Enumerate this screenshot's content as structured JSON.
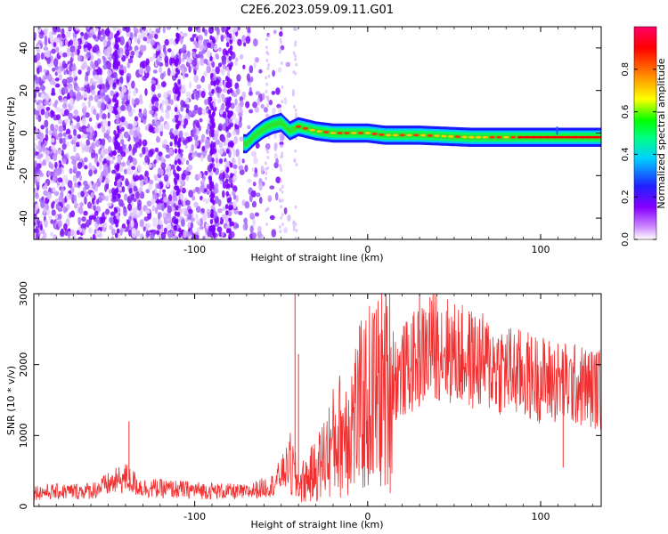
{
  "title": "C2E6.2023.059.09.11.G01",
  "chart_data": [
    {
      "type": "heatmap",
      "xlabel": "Height of straight line (km)",
      "ylabel": "Frequency (Hz)",
      "xlim": [
        -193,
        135
      ],
      "ylim": [
        -50,
        50
      ],
      "xticks": [
        -100,
        0,
        100
      ],
      "yticks": [
        -40,
        -20,
        0,
        20,
        40
      ],
      "ridge": [
        {
          "x": -70,
          "y": -5
        },
        {
          "x": -65,
          "y": -1
        },
        {
          "x": -60,
          "y": 2
        },
        {
          "x": -55,
          "y": 4
        },
        {
          "x": -50,
          "y": 5
        },
        {
          "x": -45,
          "y": 1
        },
        {
          "x": -40,
          "y": 3
        },
        {
          "x": -35,
          "y": 2
        },
        {
          "x": -30,
          "y": 1
        },
        {
          "x": -20,
          "y": 0
        },
        {
          "x": -10,
          "y": 0
        },
        {
          "x": 0,
          "y": 0
        },
        {
          "x": 10,
          "y": -1
        },
        {
          "x": 30,
          "y": -1
        },
        {
          "x": 60,
          "y": -2
        },
        {
          "x": 90,
          "y": -2
        },
        {
          "x": 110,
          "y": -2
        },
        {
          "x": 135,
          "y": -2
        }
      ],
      "colorbar": {
        "label": "Normalized spectral amplitude",
        "range": [
          0,
          1
        ],
        "ticks": [
          0.0,
          0.2,
          0.4,
          0.6,
          0.8
        ],
        "colors": [
          "#ffffff",
          "#8800ff",
          "#0000ff",
          "#00d0ff",
          "#00ff00",
          "#ffff00",
          "#ff8000",
          "#ff0000",
          "#ff0066"
        ]
      }
    },
    {
      "type": "line",
      "xlabel": "Height of straight line (km)",
      "ylabel": "SNR (10 * v/v)",
      "xlim": [
        -193,
        135
      ],
      "ylim": [
        0,
        3000
      ],
      "xticks": [
        -100,
        0,
        100
      ],
      "yticks": [
        0,
        1000,
        2000,
        3000
      ],
      "color": "#f03030",
      "envelope": [
        {
          "x": -190,
          "y": 200
        },
        {
          "x": -160,
          "y": 220
        },
        {
          "x": -140,
          "y": 400
        },
        {
          "x": -130,
          "y": 260
        },
        {
          "x": -100,
          "y": 230
        },
        {
          "x": -70,
          "y": 200
        },
        {
          "x": -55,
          "y": 300
        },
        {
          "x": -45,
          "y": 600
        },
        {
          "x": -40,
          "y": 300
        },
        {
          "x": -30,
          "y": 500
        },
        {
          "x": -20,
          "y": 900
        },
        {
          "x": -10,
          "y": 1200
        },
        {
          "x": 0,
          "y": 1500
        },
        {
          "x": 10,
          "y": 1700
        },
        {
          "x": 20,
          "y": 1900
        },
        {
          "x": 30,
          "y": 2100
        },
        {
          "x": 40,
          "y": 2300
        },
        {
          "x": 50,
          "y": 2150
        },
        {
          "x": 70,
          "y": 2000
        },
        {
          "x": 90,
          "y": 1850
        },
        {
          "x": 110,
          "y": 1750
        },
        {
          "x": 135,
          "y": 1650
        }
      ],
      "spikes": [
        {
          "x": -42,
          "y": 3000
        },
        {
          "x": -40,
          "y": 2150
        },
        {
          "x": -138,
          "y": 1200
        },
        {
          "x": 30,
          "y": 3000
        },
        {
          "x": 36,
          "y": 2950
        },
        {
          "x": 113,
          "y": 550
        }
      ]
    }
  ]
}
